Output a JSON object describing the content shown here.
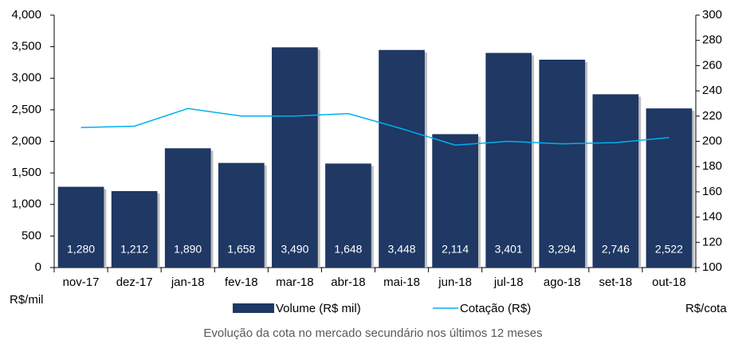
{
  "chart_data": {
    "type": "bar-line",
    "caption": "Evolução da cota no mercado secundário nos últimos 12 meses",
    "y_label": "R$/mil",
    "y2_label": "R$/cota",
    "categories": [
      "nov-17",
      "dez-17",
      "jan-18",
      "fev-18",
      "mar-18",
      "abr-18",
      "mai-18",
      "jun-18",
      "jul-18",
      "ago-18",
      "set-18",
      "out-18"
    ],
    "series": [
      {
        "name": "Volume (R$ mil)",
        "color": "#1f3864",
        "values": [
          1280,
          1212,
          1890,
          1658,
          3490,
          1648,
          3448,
          2114,
          3401,
          3294,
          2746,
          2522
        ],
        "value_labels": [
          "1,280",
          "1,212",
          "1,890",
          "1,658",
          "3,490",
          "1,648",
          "3,448",
          "2,114",
          "3,401",
          "3,294",
          "2,746",
          "2,522"
        ]
      },
      {
        "name": "Cotação (R$)",
        "color": "#00b0f0",
        "axis": "y2",
        "values": [
          211,
          212,
          226,
          220,
          220,
          222,
          210,
          197,
          200,
          198,
          199,
          203
        ]
      }
    ],
    "ylim": [
      0,
      4000
    ],
    "yticks": [
      0,
      500,
      {
        "value": 1000,
        "label": "1,000"
      },
      {
        "value": 1500,
        "label": "1,500"
      },
      {
        "value": 2000,
        "label": "2,000"
      },
      {
        "value": 2500,
        "label": "2,500"
      },
      {
        "value": 3000,
        "label": "3,000"
      },
      {
        "value": 3500,
        "label": "3,500"
      },
      {
        "value": 4000,
        "label": "4,000"
      }
    ],
    "y2lim": [
      100,
      300
    ],
    "y2ticks": [
      100,
      120,
      140,
      160,
      180,
      200,
      220,
      240,
      260,
      280,
      300
    ],
    "legend": "bottom"
  }
}
